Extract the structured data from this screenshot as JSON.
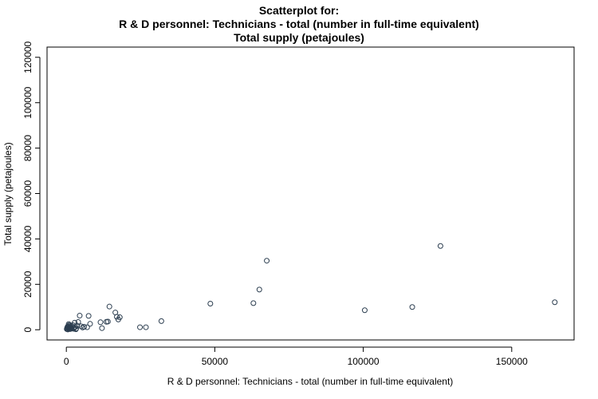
{
  "chart_data": {
    "type": "scatter",
    "title_lines": [
      "Scatterplot for:",
      "R & D personnel: Technicians - total (number in full-time equivalent)",
      "Total supply (petajoules)"
    ],
    "xlabel": "R & D personnel: Technicians - total (number in full-time equivalent)",
    "ylabel": "Total supply (petajoules)",
    "xlim": [
      -6500,
      171000
    ],
    "ylim": [
      -4500,
      124500
    ],
    "xticks": [
      0,
      50000,
      100000,
      150000
    ],
    "yticks": [
      0,
      20000,
      40000,
      60000,
      80000,
      100000,
      120000
    ],
    "grid": false,
    "marker_color": "#2c3e50",
    "series": [
      {
        "x": [
          150,
          250,
          300,
          400,
          500,
          600,
          700,
          800,
          900,
          1000,
          1100,
          1200,
          1300,
          1500,
          1600,
          1800,
          2000,
          2200,
          2500,
          2800,
          3000,
          3300,
          3600,
          4000,
          4500,
          5000,
          5500,
          6000,
          7000,
          7500,
          8000,
          500,
          800,
          1200,
          1700,
          2400,
          3200,
          11500,
          12000,
          13500,
          14000,
          14500,
          16500,
          17000,
          17500,
          18000,
          24800,
          26800,
          32000,
          48500,
          63000,
          65000,
          67500,
          100500,
          116500,
          126000,
          164500
        ],
        "y": [
          300,
          800,
          400,
          1300,
          200,
          900,
          1600,
          500,
          1100,
          2100,
          700,
          1500,
          300,
          1000,
          1800,
          600,
          1400,
          2000,
          900,
          3100,
          1200,
          500,
          1800,
          3400,
          6200,
          1500,
          1000,
          1300,
          1100,
          6100,
          2600,
          100,
          2500,
          600,
          1000,
          400,
          200,
          3300,
          700,
          3500,
          3600,
          10200,
          7600,
          5700,
          4500,
          5500,
          1100,
          1100,
          3800,
          11500,
          11700,
          17700,
          30400,
          8600,
          10000,
          36900,
          12100
        ]
      }
    ]
  }
}
